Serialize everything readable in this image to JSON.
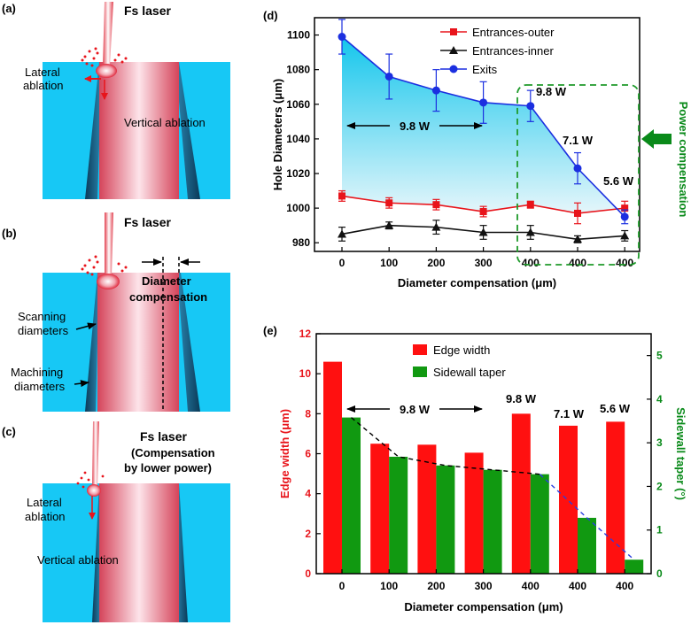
{
  "panels": {
    "a": {
      "label": "(a)",
      "laser": "Fs laser",
      "lateral_line1": "Lateral",
      "lateral_line2": "ablation",
      "vertical": "Vertical ablation"
    },
    "b": {
      "label": "(b)",
      "laser": "Fs laser",
      "diameter_comp_line1": "Diameter",
      "diameter_comp_line2": "compensation",
      "scanning_line1": "Scanning",
      "scanning_line2": "diameters",
      "machining_line1": "Machining",
      "machining_line2": "diameters"
    },
    "c": {
      "label": "(c)",
      "laser_line1": "Fs laser",
      "laser_line2": "(Compensation",
      "laser_line3": "by lower power)",
      "lateral_line1": "Lateral",
      "lateral_line2": "ablation",
      "vertical": "Vertical ablation"
    }
  },
  "colors": {
    "water": "#17c8f5",
    "outer": "#e8141b",
    "inner": "#111111",
    "exit": "#1b2fe0",
    "green": "#0a8a1a",
    "bar_red": "#ff1010",
    "bar_green": "#119911"
  },
  "chart_data": [
    {
      "panel": "(d)",
      "type": "line",
      "categories": [
        "0",
        "100",
        "200",
        "300",
        "400",
        "400",
        "400"
      ],
      "xlabel": "Diameter compensation (μm)",
      "ylabel": "Hole Diameters (μm)",
      "ylim": [
        975,
        1110
      ],
      "yticks": [
        980,
        1000,
        1020,
        1040,
        1060,
        1080,
        1100
      ],
      "series": [
        {
          "name": "Entrances-outer",
          "marker": "square",
          "values": [
            1007,
            1003,
            1002,
            998,
            1002,
            997,
            1000
          ],
          "errors": [
            3,
            3,
            3,
            3,
            2,
            6,
            4
          ]
        },
        {
          "name": "Entrances-inner",
          "marker": "triangle",
          "values": [
            985,
            990,
            989,
            986,
            986,
            982,
            984
          ],
          "errors": [
            4,
            2,
            4,
            4,
            4,
            2,
            3
          ]
        },
        {
          "name": "Exits",
          "marker": "circle",
          "values": [
            1099,
            1076,
            1068,
            1061,
            1059,
            1023,
            995
          ],
          "errors": [
            10,
            13,
            12,
            12,
            9,
            9,
            4
          ]
        }
      ],
      "annotations": {
        "range_label": "9.8 W",
        "power_labels": [
          "9.8 W",
          "7.1 W",
          "5.6 W"
        ],
        "side_label": "Power compensation"
      }
    },
    {
      "panel": "(e)",
      "type": "bar",
      "categories": [
        "0",
        "100",
        "200",
        "300",
        "400",
        "400",
        "400"
      ],
      "xlabel": "Diameter compensation (μm)",
      "ylabel_left": "Edge width (μm)",
      "ylabel_right": "Sidewall taper (°)",
      "ylim_left": [
        0,
        12
      ],
      "yticks_left": [
        0,
        2,
        4,
        6,
        8,
        10,
        12
      ],
      "ylim_right": [
        0,
        5.5
      ],
      "yticks_right": [
        0,
        1,
        2,
        3,
        4,
        5
      ],
      "series": [
        {
          "name": "Edge width",
          "axis": "left",
          "values": [
            10.6,
            6.5,
            6.45,
            6.05,
            8.0,
            7.4,
            7.6
          ]
        },
        {
          "name": "Sidewall taper",
          "axis": "right",
          "values": [
            3.58,
            2.68,
            2.48,
            2.38,
            2.28,
            1.28,
            0.32
          ]
        }
      ],
      "annotations": {
        "range_label": "9.8 W",
        "power_labels": [
          "9.8 W",
          "7.1 W",
          "5.6 W"
        ]
      }
    }
  ]
}
